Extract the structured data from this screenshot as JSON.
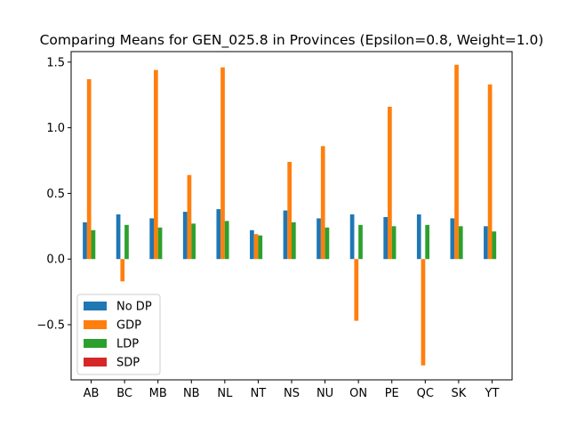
{
  "chart_data": {
    "type": "bar",
    "title": "Comparing Means for GEN_025.8 in Provinces (Epsilon=0.8, Weight=1.0)",
    "xlabel": "",
    "ylabel": "",
    "categories": [
      "AB",
      "BC",
      "MB",
      "NB",
      "NL",
      "NT",
      "NS",
      "NU",
      "ON",
      "PE",
      "QC",
      "SK",
      "YT"
    ],
    "series": [
      {
        "name": "No DP",
        "color": "#1f77b4",
        "values": [
          0.28,
          0.34,
          0.31,
          0.36,
          0.38,
          0.22,
          0.37,
          0.31,
          0.34,
          0.32,
          0.34,
          0.31,
          0.25
        ]
      },
      {
        "name": "GDP",
        "color": "#ff7f0e",
        "values": [
          1.37,
          -0.17,
          1.44,
          0.64,
          1.46,
          0.19,
          0.74,
          0.86,
          -0.47,
          1.16,
          -0.81,
          1.48,
          1.33
        ]
      },
      {
        "name": "LDP",
        "color": "#2ca02c",
        "values": [
          0.22,
          0.26,
          0.24,
          0.27,
          0.29,
          0.18,
          0.28,
          0.24,
          0.26,
          0.25,
          0.26,
          0.25,
          0.21
        ]
      },
      {
        "name": "SDP",
        "color": "#d62728",
        "values": [
          0,
          0,
          0,
          0,
          0,
          0,
          0,
          0,
          0,
          0,
          0,
          0,
          0
        ]
      }
    ],
    "ylim": [
      -0.92,
      1.58
    ],
    "yticks": [
      -0.5,
      0.0,
      0.5,
      1.0,
      1.5
    ],
    "ytick_labels": [
      "−0.5",
      "0.0",
      "0.5",
      "1.0",
      "1.5"
    ],
    "grid": false,
    "legend_position": "lower-left"
  }
}
